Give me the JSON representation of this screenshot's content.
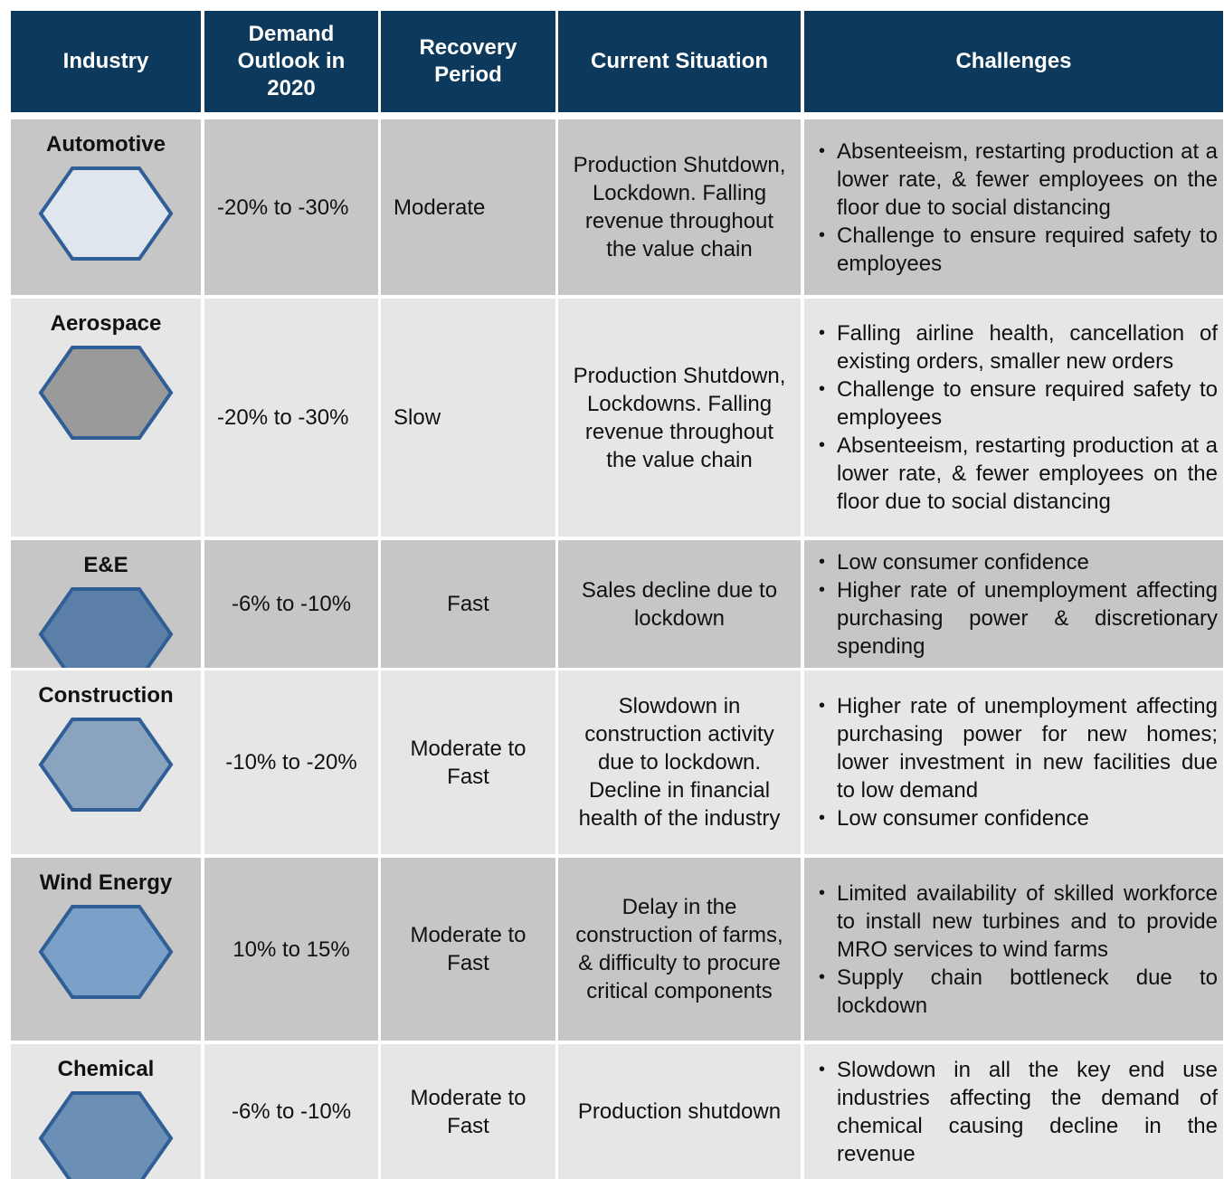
{
  "header": [
    "Industry",
    "Demand Outlook in 2020",
    "Recovery Period",
    "Current Situation",
    "Challenges"
  ],
  "rows": [
    {
      "industry": "Automotive",
      "demand": "-20% to -30%",
      "recovery": "Moderate",
      "situation": "Production Shutdown, Lockdown. Falling revenue throughout the value chain",
      "challenges": [
        "Absenteeism, restarting production at a lower rate, & fewer employees on the floor due to social distancing",
        "Challenge to ensure required safety to employees"
      ]
    },
    {
      "industry": "Aerospace",
      "demand": "-20% to -30%",
      "recovery": "Slow",
      "situation": "Production Shutdown, Lockdowns. Falling revenue throughout the value chain",
      "challenges": [
        "Falling airline health, cancellation of existing orders, smaller new orders",
        "Challenge to ensure required safety to employees",
        "Absenteeism, restarting production at a lower rate, & fewer employees on the floor due to social distancing"
      ]
    },
    {
      "industry": "E&E",
      "demand": "-6% to -10%",
      "recovery": "Fast",
      "situation": "Sales decline due to lockdown",
      "challenges": [
        "Low consumer confidence",
        "Higher rate of unemployment affecting purchasing power & discretionary spending"
      ]
    },
    {
      "industry": "Construction",
      "demand": "-10% to -20%",
      "recovery": "Moderate to Fast",
      "situation": "Slowdown in construction activity due to lockdown. Decline in financial health of the industry",
      "challenges": [
        "Higher rate of unemployment affecting purchasing power for new homes; lower investment in new facilities due to low demand",
        "Low consumer confidence"
      ]
    },
    {
      "industry": "Wind Energy",
      "demand": "10% to 15%",
      "recovery": "Moderate to Fast",
      "situation": "Delay in the construction of farms, & difficulty to procure critical components",
      "challenges": [
        "Limited availability of skilled workforce to install new turbines and to provide MRO services to wind farms",
        "Supply chain bottleneck due to lockdown"
      ]
    },
    {
      "industry": "Chemical",
      "demand": "-6% to -10%",
      "recovery": "Moderate to Fast",
      "situation": "Production shutdown",
      "challenges": [
        "Slowdown in all the key end use industries affecting the demand of chemical causing decline in the revenue"
      ]
    }
  ]
}
